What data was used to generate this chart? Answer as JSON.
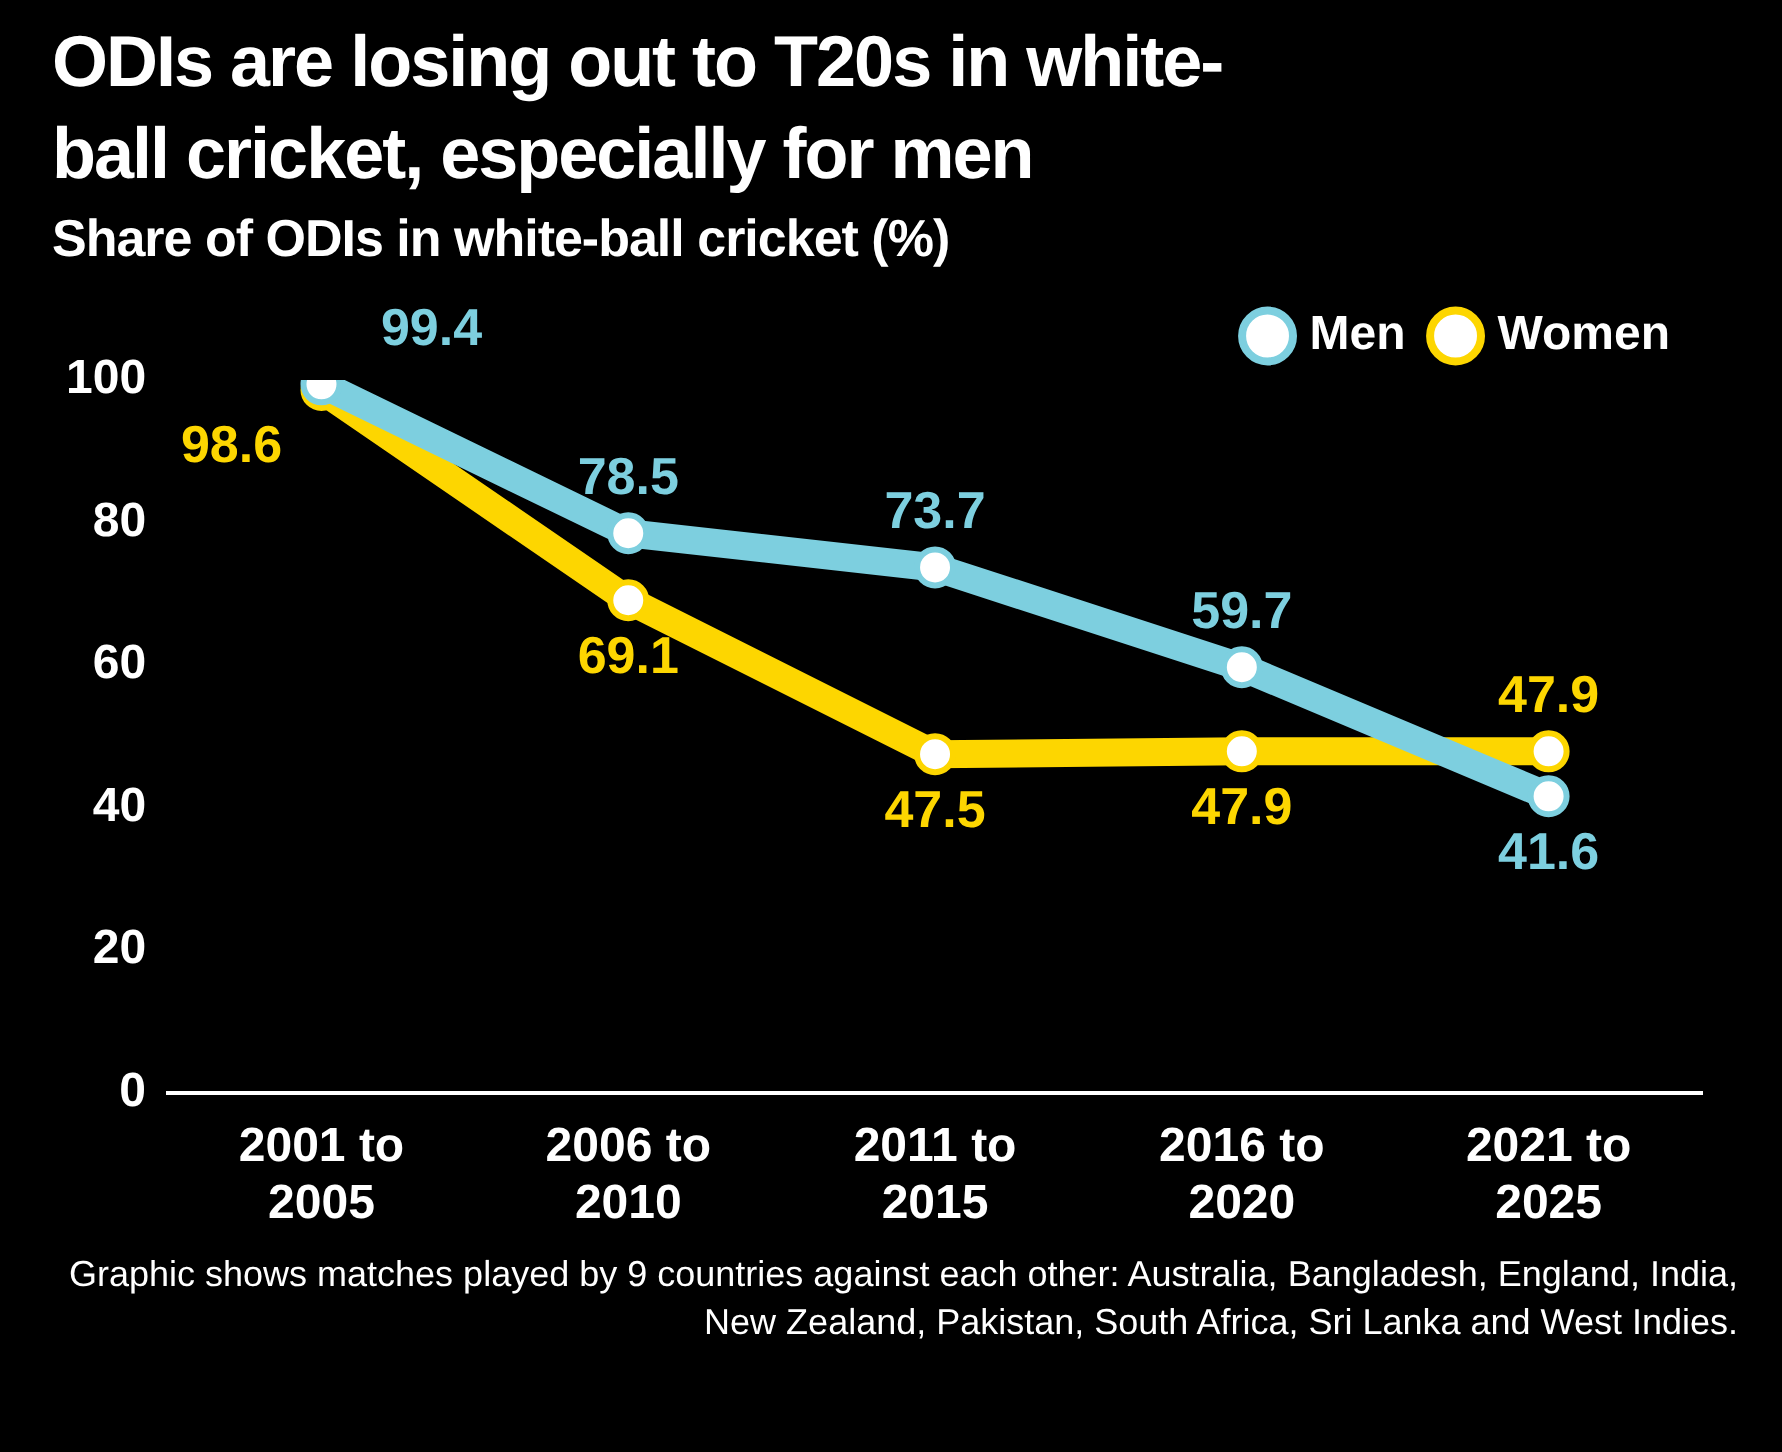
{
  "chart_data": {
    "type": "line",
    "title": "ODIs are losing out to T20s in white-ball cricket, especially for men",
    "subtitle": "Share of ODIs in white-ball cricket (%)",
    "categories": [
      "2001 to 2005",
      "2006 to 2010",
      "2011 to 2015",
      "2016 to 2020",
      "2021 to 2025"
    ],
    "series": [
      {
        "name": "Men",
        "color": "#7dcfdf",
        "values": [
          99.4,
          78.5,
          73.7,
          59.7,
          41.6
        ]
      },
      {
        "name": "Women",
        "color": "#fdd600",
        "values": [
          98.6,
          69.1,
          47.5,
          47.9,
          47.9
        ]
      }
    ],
    "ylim": [
      0,
      100
    ],
    "yticks": [
      0,
      20,
      40,
      60,
      80,
      100
    ],
    "grid": false,
    "legend": "top right",
    "marker": "circle",
    "data_labels": true,
    "annotations": [
      "Graphic shows matches played by 9 countries against each other: Australia, Bangladesh, England, India, New Zealand, Pakistan, South Africa, Sri Lanka and West Indies."
    ]
  }
}
